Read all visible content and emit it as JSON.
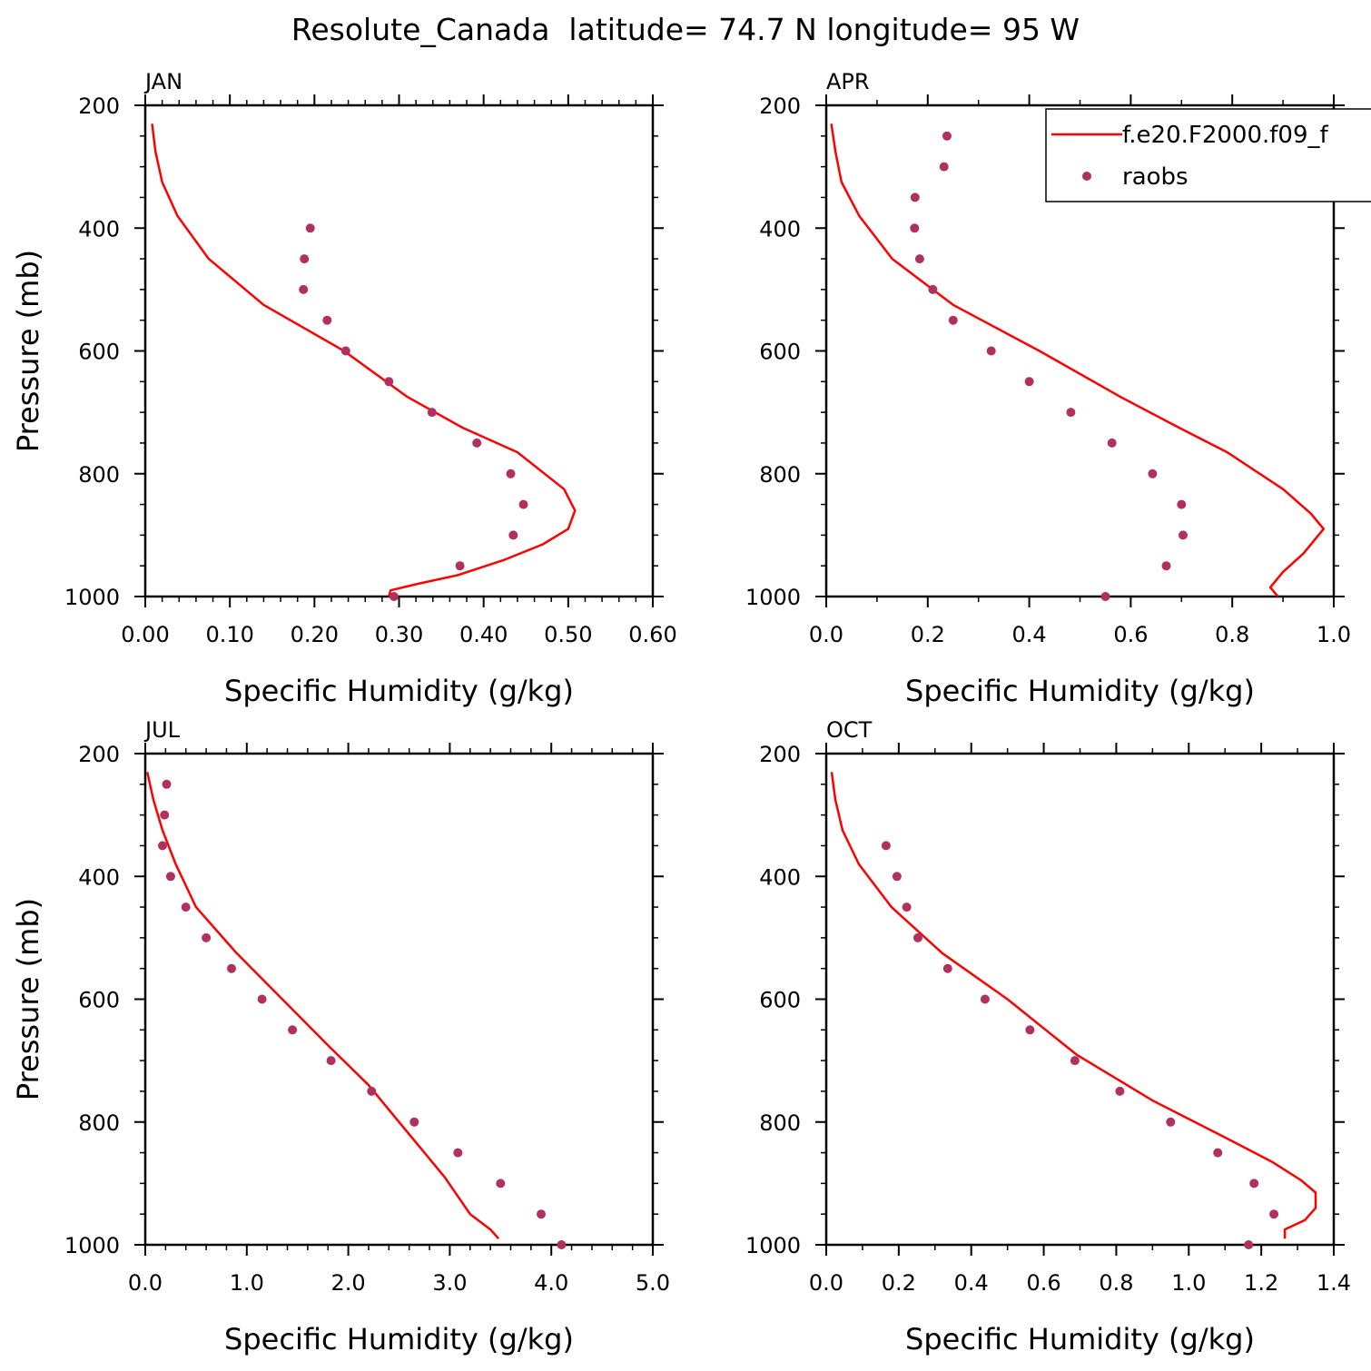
{
  "figure": {
    "title": "Resolute_Canada  latitude= 74.7 N longitude= 95 W"
  },
  "legend": {
    "model_label": "f.e20.F2000.f09_f",
    "obs_label": "raobs",
    "placement": "top-right of APR panel, clipped at right edge"
  },
  "colors": {
    "model_line": "#ff0000",
    "obs_marker": "#b03060",
    "axes": "#000000"
  },
  "chart_data": [
    {
      "type": "line",
      "panel": "JAN",
      "xlabel": "Specific Humidity (g/kg)",
      "ylabel": "Pressure (mb)",
      "xlim": [
        0,
        0.6
      ],
      "ylim": [
        200,
        1000
      ],
      "y_inverted": false,
      "x_ticks": [
        "0.00",
        "0.10",
        "0.20",
        "0.30",
        "0.40",
        "0.50",
        "0.60"
      ],
      "y_ticks": [
        "200",
        "400",
        "600",
        "800",
        "1000"
      ],
      "series": [
        {
          "name": "f.e20.F2000.f09_f",
          "kind": "line",
          "points": [
            [
              0.008,
              230
            ],
            [
              0.012,
              275
            ],
            [
              0.02,
              325
            ],
            [
              0.038,
              380
            ],
            [
              0.075,
              450
            ],
            [
              0.14,
              525
            ],
            [
              0.235,
              600
            ],
            [
              0.31,
              675
            ],
            [
              0.375,
              725
            ],
            [
              0.44,
              765
            ],
            [
              0.495,
              825
            ],
            [
              0.508,
              860
            ],
            [
              0.5,
              890
            ],
            [
              0.47,
              915
            ],
            [
              0.425,
              940
            ],
            [
              0.37,
              965
            ],
            [
              0.32,
              980
            ],
            [
              0.29,
              990
            ],
            [
              0.288,
              1000
            ]
          ]
        },
        {
          "name": "raobs",
          "kind": "scatter",
          "points": [
            [
              0.195,
              400
            ],
            [
              0.188,
              450
            ],
            [
              0.187,
              500
            ],
            [
              0.215,
              550
            ],
            [
              0.237,
              600
            ],
            [
              0.288,
              650
            ],
            [
              0.339,
              700
            ],
            [
              0.392,
              750
            ],
            [
              0.432,
              800
            ],
            [
              0.447,
              850
            ],
            [
              0.435,
              900
            ],
            [
              0.372,
              950
            ],
            [
              0.294,
              1000
            ]
          ]
        }
      ]
    },
    {
      "type": "line",
      "panel": "APR",
      "xlabel": "Specific Humidity (g/kg)",
      "ylabel": "",
      "xlim": [
        0,
        1.0
      ],
      "ylim": [
        200,
        1000
      ],
      "x_ticks": [
        "0.0",
        "0.2",
        "0.4",
        "0.6",
        "0.8",
        "1.0"
      ],
      "y_ticks": [
        "200",
        "400",
        "600",
        "800",
        "1000"
      ],
      "series": [
        {
          "name": "f.e20.F2000.f09_f",
          "kind": "line",
          "points": [
            [
              0.01,
              230
            ],
            [
              0.018,
              275
            ],
            [
              0.03,
              325
            ],
            [
              0.065,
              380
            ],
            [
              0.13,
              450
            ],
            [
              0.25,
              525
            ],
            [
              0.42,
              600
            ],
            [
              0.58,
              675
            ],
            [
              0.695,
              725
            ],
            [
              0.79,
              765
            ],
            [
              0.9,
              825
            ],
            [
              0.955,
              865
            ],
            [
              0.98,
              890
            ],
            [
              0.94,
              930
            ],
            [
              0.9,
              960
            ],
            [
              0.875,
              985
            ],
            [
              0.89,
              1000
            ]
          ]
        },
        {
          "name": "raobs",
          "kind": "scatter",
          "points": [
            [
              0.238,
              250
            ],
            [
              0.232,
              300
            ],
            [
              0.175,
              350
            ],
            [
              0.174,
              400
            ],
            [
              0.184,
              450
            ],
            [
              0.21,
              500
            ],
            [
              0.25,
              550
            ],
            [
              0.325,
              600
            ],
            [
              0.4,
              650
            ],
            [
              0.482,
              700
            ],
            [
              0.563,
              750
            ],
            [
              0.643,
              800
            ],
            [
              0.7,
              850
            ],
            [
              0.703,
              900
            ],
            [
              0.67,
              950
            ],
            [
              0.55,
              1000
            ]
          ]
        }
      ]
    },
    {
      "type": "line",
      "panel": "JUL",
      "xlabel": "Specific Humidity (g/kg)",
      "ylabel": "Pressure (mb)",
      "xlim": [
        0,
        5.0
      ],
      "ylim": [
        200,
        1000
      ],
      "x_ticks": [
        "0.0",
        "1.0",
        "2.0",
        "3.0",
        "4.0",
        "5.0"
      ],
      "y_ticks": [
        "200",
        "400",
        "600",
        "800",
        "1000"
      ],
      "series": [
        {
          "name": "f.e20.F2000.f09_f",
          "kind": "line",
          "points": [
            [
              0.02,
              230
            ],
            [
              0.08,
              275
            ],
            [
              0.17,
              325
            ],
            [
              0.3,
              380
            ],
            [
              0.5,
              450
            ],
            [
              0.9,
              525
            ],
            [
              1.35,
              600
            ],
            [
              1.8,
              675
            ],
            [
              2.2,
              740
            ],
            [
              2.5,
              800
            ],
            [
              2.75,
              850
            ],
            [
              2.95,
              890
            ],
            [
              3.2,
              950
            ],
            [
              3.4,
              975
            ],
            [
              3.48,
              990
            ]
          ]
        },
        {
          "name": "raobs",
          "kind": "scatter",
          "points": [
            [
              0.21,
              250
            ],
            [
              0.19,
              300
            ],
            [
              0.17,
              350
            ],
            [
              0.25,
              400
            ],
            [
              0.4,
              450
            ],
            [
              0.6,
              500
            ],
            [
              0.85,
              550
            ],
            [
              1.15,
              600
            ],
            [
              1.45,
              650
            ],
            [
              1.83,
              700
            ],
            [
              2.23,
              750
            ],
            [
              2.65,
              800
            ],
            [
              3.08,
              850
            ],
            [
              3.5,
              900
            ],
            [
              3.9,
              950
            ],
            [
              4.1,
              1000
            ]
          ]
        }
      ]
    },
    {
      "type": "line",
      "panel": "OCT",
      "xlabel": "Specific Humidity (g/kg)",
      "ylabel": "",
      "xlim": [
        0,
        1.4
      ],
      "ylim": [
        200,
        1000
      ],
      "x_ticks": [
        "0.0",
        "0.2",
        "0.4",
        "0.6",
        "0.8",
        "1.0",
        "1.2",
        "1.4"
      ],
      "y_ticks": [
        "200",
        "400",
        "600",
        "800",
        "1000"
      ],
      "series": [
        {
          "name": "f.e20.F2000.f09_f",
          "kind": "line",
          "points": [
            [
              0.015,
              230
            ],
            [
              0.025,
              275
            ],
            [
              0.045,
              325
            ],
            [
              0.09,
              380
            ],
            [
              0.18,
              450
            ],
            [
              0.32,
              525
            ],
            [
              0.5,
              600
            ],
            [
              0.69,
              690
            ],
            [
              0.9,
              765
            ],
            [
              1.1,
              825
            ],
            [
              1.23,
              865
            ],
            [
              1.31,
              895
            ],
            [
              1.35,
              915
            ],
            [
              1.35,
              940
            ],
            [
              1.32,
              960
            ],
            [
              1.265,
              975
            ],
            [
              1.265,
              990
            ]
          ]
        },
        {
          "name": "raobs",
          "kind": "scatter",
          "points": [
            [
              0.165,
              350
            ],
            [
              0.195,
              400
            ],
            [
              0.222,
              450
            ],
            [
              0.253,
              500
            ],
            [
              0.335,
              550
            ],
            [
              0.438,
              600
            ],
            [
              0.562,
              650
            ],
            [
              0.686,
              700
            ],
            [
              0.81,
              750
            ],
            [
              0.95,
              800
            ],
            [
              1.08,
              850
            ],
            [
              1.18,
              900
            ],
            [
              1.235,
              950
            ],
            [
              1.165,
              1000
            ]
          ]
        }
      ]
    }
  ]
}
